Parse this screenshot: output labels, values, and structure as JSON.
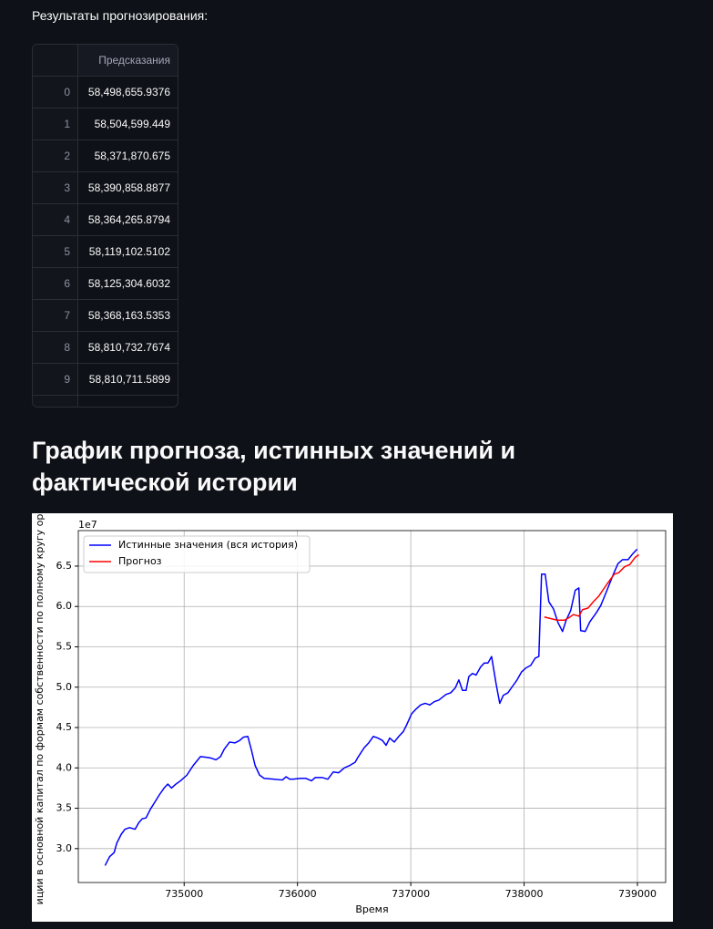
{
  "header": {
    "text": "Результаты прогнозирования:"
  },
  "table": {
    "columns": [
      "Предсказания"
    ],
    "index": [
      0,
      1,
      2,
      3,
      4,
      5,
      6,
      7,
      8,
      9
    ],
    "rows": [
      [
        "58,498,655.9376"
      ],
      [
        "58,504,599.449"
      ],
      [
        "58,371,870.675"
      ],
      [
        "58,390,858.8877"
      ],
      [
        "58,364,265.8794"
      ],
      [
        "58,119,102.5102"
      ],
      [
        "58,125,304.6032"
      ],
      [
        "58,368,163.5353"
      ],
      [
        "58,810,732.7674"
      ],
      [
        "58,810,711.5899"
      ]
    ]
  },
  "section": {
    "title": "График прогноза, истинных значений и фактической истории"
  },
  "chart_data": {
    "type": "line",
    "x_label": "Время",
    "y_label": "иции в основной капитал по формам собственности по полному кругу ор",
    "y_offset_label": "1e7",
    "xlim": [
      734066,
      739249
    ],
    "ylim": [
      2.58,
      6.94
    ],
    "xticks": [
      735000,
      736000,
      737000,
      738000,
      739000
    ],
    "yticks": [
      {
        "value": 3.0,
        "label": "3.0"
      },
      {
        "value": 3.5,
        "label": "3.5"
      },
      {
        "value": 4.0,
        "label": "4.0"
      },
      {
        "value": 4.5,
        "label": "4.5"
      },
      {
        "value": 5.0,
        "label": "5.0"
      },
      {
        "value": 5.5,
        "label": "5.5"
      },
      {
        "value": 6.0,
        "label": "6.0"
      },
      {
        "value": 6.5,
        "label": "6.5"
      }
    ],
    "grid": true,
    "legend": "upper-left",
    "series": [
      {
        "name": "Истинные значения (вся история)",
        "color": "#0000ff",
        "x": [
          734302,
          734342,
          734382,
          734406,
          734446,
          734478,
          734518,
          734567,
          734599,
          734631,
          734663,
          734703,
          734743,
          734783,
          734823,
          734856,
          734888,
          734928,
          734968,
          735024,
          735080,
          735144,
          735201,
          735241,
          735281,
          735321,
          735353,
          735401,
          735449,
          735490,
          735522,
          735562,
          735594,
          735626,
          735666,
          735706,
          735787,
          735867,
          735899,
          735931,
          735963,
          736027,
          736075,
          736124,
          736156,
          736220,
          736268,
          736316,
          736364,
          736413,
          736461,
          736509,
          736533,
          736589,
          736629,
          736669,
          736710,
          736750,
          736782,
          736814,
          736854,
          736894,
          736934,
          736966,
          737007,
          737047,
          737087,
          737127,
          737167,
          737207,
          737247,
          737311,
          737352,
          737392,
          737424,
          737456,
          737488,
          737512,
          737544,
          737576,
          737616,
          737649,
          737681,
          737713,
          737753,
          737785,
          737817,
          737857,
          737897,
          737938,
          737978,
          738018,
          738058,
          738098,
          738130,
          738154,
          738186,
          738218,
          738259,
          738299,
          738339,
          738371,
          738411,
          738451,
          738483,
          738499,
          738539,
          738580,
          738636,
          738676,
          738708,
          738748,
          738788,
          738828,
          738869,
          738917,
          738957,
          738997
        ],
        "values": [
          2.79,
          2.9,
          2.95,
          3.07,
          3.18,
          3.24,
          3.26,
          3.24,
          3.32,
          3.37,
          3.38,
          3.49,
          3.58,
          3.67,
          3.75,
          3.8,
          3.75,
          3.8,
          3.84,
          3.91,
          4.03,
          4.14,
          4.13,
          4.12,
          4.1,
          4.14,
          4.23,
          4.32,
          4.31,
          4.34,
          4.38,
          4.39,
          4.22,
          4.03,
          3.91,
          3.87,
          3.86,
          3.85,
          3.89,
          3.86,
          3.86,
          3.87,
          3.87,
          3.84,
          3.88,
          3.88,
          3.86,
          3.95,
          3.94,
          4.0,
          4.03,
          4.07,
          4.13,
          4.25,
          4.31,
          4.39,
          4.37,
          4.34,
          4.28,
          4.37,
          4.32,
          4.39,
          4.45,
          4.54,
          4.67,
          4.73,
          4.78,
          4.8,
          4.78,
          4.82,
          4.84,
          4.91,
          4.93,
          4.99,
          5.09,
          4.96,
          4.96,
          5.13,
          5.17,
          5.15,
          5.25,
          5.3,
          5.3,
          5.38,
          5.04,
          4.8,
          4.9,
          4.93,
          5.01,
          5.09,
          5.19,
          5.24,
          5.27,
          5.36,
          5.38,
          6.4,
          6.4,
          6.06,
          5.97,
          5.8,
          5.69,
          5.83,
          5.95,
          6.2,
          6.23,
          5.7,
          5.69,
          5.81,
          5.92,
          6.01,
          6.12,
          6.26,
          6.4,
          6.53,
          6.58,
          6.58,
          6.65,
          6.71
        ]
      },
      {
        "name": "Прогноз",
        "color": "#ff0000",
        "x": [
          738178,
          738234,
          738291,
          738355,
          738395,
          738435,
          738483,
          738515,
          738564,
          738612,
          738660,
          738708,
          738748,
          738796,
          738836,
          738885,
          738933,
          738981,
          739013
        ],
        "values": [
          5.87,
          5.85,
          5.83,
          5.83,
          5.86,
          5.9,
          5.88,
          5.96,
          5.98,
          6.06,
          6.13,
          6.23,
          6.31,
          6.4,
          6.42,
          6.49,
          6.52,
          6.61,
          6.64
        ]
      }
    ]
  }
}
